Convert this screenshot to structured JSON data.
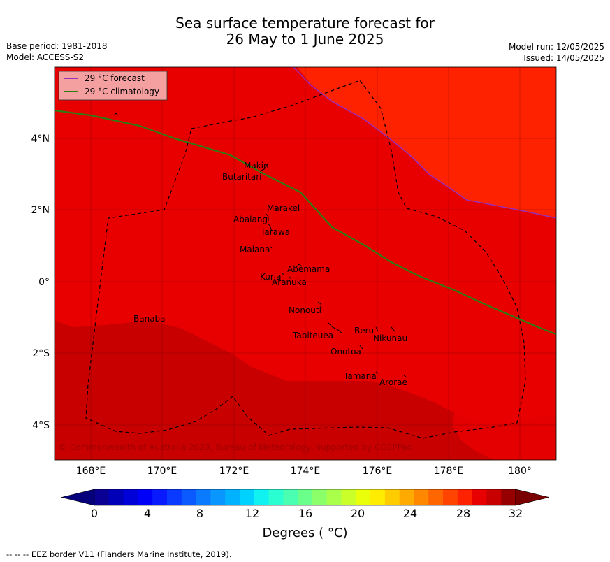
{
  "header": {
    "title_line1": "Sea surface temperature forecast for",
    "title_line2": "26 May to 1 June 2025",
    "base_period": "Base period: 1981-2018",
    "model": "Model: ACCESS-S2",
    "model_run": "Model run: 12/05/2025",
    "issued": "Issued: 14/05/2025"
  },
  "map": {
    "x_ticks": [
      "168°E",
      "170°E",
      "172°E",
      "174°E",
      "176°E",
      "178°E",
      "180°"
    ],
    "y_ticks": [
      "4°N",
      "2°N",
      "0°",
      "2°S",
      "4°S"
    ],
    "legend": [
      {
        "label": "29 °C  forecast",
        "color": "#9b2db6"
      },
      {
        "label": "29 °C  climatology",
        "color": "#2e7d12"
      }
    ],
    "copyright": "© Commonwealth of Australia 2023, Bureau of Meteorology, supported by COSPPac",
    "islands": [
      "Makin",
      "Butaritari",
      "Marakei",
      "Abaiang",
      "Tarawa",
      "Maiana",
      "Abemama",
      "Kuria",
      "Aranuka",
      "Nonouti",
      "Banaba",
      "Beru",
      "Nikunau",
      "Tabiteuea",
      "Onotoa",
      "Tamana",
      "Arorae"
    ]
  },
  "colorbar": {
    "tick_labels": [
      "0",
      "4",
      "8",
      "12",
      "16",
      "20",
      "24",
      "28",
      "32"
    ],
    "title": "Degrees ( °C)",
    "colors": [
      "#0a0094",
      "#0000b8",
      "#0000d8",
      "#0000f8",
      "#0a1aff",
      "#0a3aff",
      "#0a5aff",
      "#0a7aff",
      "#0a96ff",
      "#00b2ff",
      "#00d2ff",
      "#10f2f2",
      "#2affd2",
      "#4aff b2",
      "#6aff8a",
      "#8aff6a",
      "#aaff4a",
      "#caff2a",
      "#eaff0a",
      "#ffec00",
      "#ffcc00",
      "#ffaa00",
      "#ff8800",
      "#ff6600",
      "#ff4400",
      "#ff2200",
      "#e80000",
      "#c80000",
      "#960000"
    ],
    "under_color": "#06007a",
    "over_color": "#7a0000"
  },
  "footer": {
    "text": "--  --  -- EEZ border V11 (Flanders Marine Institute, 2019)."
  }
}
